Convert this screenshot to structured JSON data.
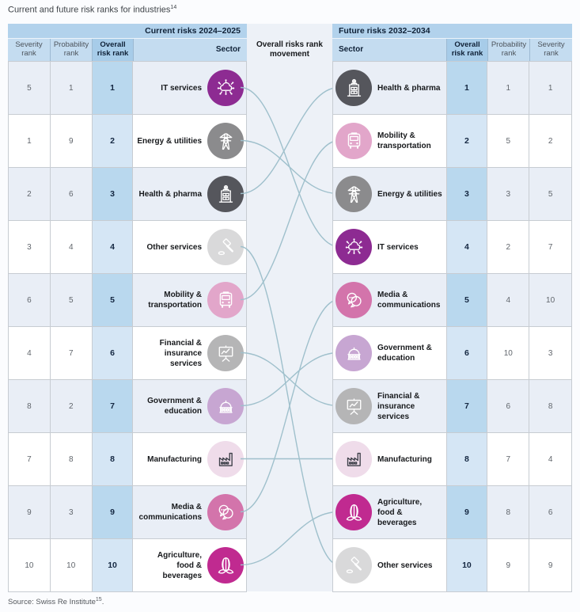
{
  "title": {
    "text": "Current and future risk ranks for industries",
    "superscript": "14"
  },
  "source": {
    "text": "Source: Swiss Re Institute",
    "superscript": "15",
    "suffix": "."
  },
  "colors": {
    "header_band": "#b2d2ec",
    "column_header": "#c4dcf0",
    "overall_header": "#a7cce9",
    "overall_cell_striped": "#b9d8ee",
    "overall_cell_white": "#d5e6f5",
    "row_striped": "#e9eef6",
    "row_white": "#ffffff",
    "movement_line": "#9fc0cc"
  },
  "current_table": {
    "header": "Current risks 2024–2025",
    "columns": {
      "severity": "Severity rank",
      "probability": "Probability rank",
      "overall": "Overall risk rank",
      "sector": "Sector"
    },
    "rows": [
      {
        "severity": "5",
        "probability": "1",
        "overall": "1",
        "sector": "IT services",
        "icon": "cloud-network-icon",
        "icon_bg": "#8d2b92",
        "icon_fg": "#ffffff"
      },
      {
        "severity": "1",
        "probability": "9",
        "overall": "2",
        "sector": "Energy & utilities",
        "icon": "transmission-tower-icon",
        "icon_bg": "#8b8b8d",
        "icon_fg": "#ffffff"
      },
      {
        "severity": "2",
        "probability": "6",
        "overall": "3",
        "sector": "Health & pharma",
        "icon": "hospital-icon",
        "icon_bg": "#55565c",
        "icon_fg": "#ffffff"
      },
      {
        "severity": "3",
        "probability": "4",
        "overall": "4",
        "sector": "Other services",
        "icon": "gavel-icon",
        "icon_bg": "#d9d9da",
        "icon_fg": "#ffffff"
      },
      {
        "severity": "6",
        "probability": "5",
        "overall": "5",
        "sector": "Mobility &\ntransportation",
        "icon": "bus-icon",
        "icon_bg": "#e2a6ca",
        "icon_fg": "#ffffff"
      },
      {
        "severity": "4",
        "probability": "7",
        "overall": "6",
        "sector": "Financial &\ninsurance\nservices",
        "icon": "presentation-chart-icon",
        "icon_bg": "#b5b5b6",
        "icon_fg": "#ffffff"
      },
      {
        "severity": "8",
        "probability": "2",
        "overall": "7",
        "sector": "Government &\neducation",
        "icon": "capitol-icon",
        "icon_bg": "#c7a6d2",
        "icon_fg": "#ffffff"
      },
      {
        "severity": "7",
        "probability": "8",
        "overall": "8",
        "sector": "Manufacturing",
        "icon": "factory-icon",
        "icon_bg": "#efdcea",
        "icon_fg": "#3c3f48"
      },
      {
        "severity": "9",
        "probability": "3",
        "overall": "9",
        "sector": "Media &\ncommunications",
        "icon": "chat-bubbles-icon",
        "icon_bg": "#d374ab",
        "icon_fg": "#ffffff"
      },
      {
        "severity": "10",
        "probability": "10",
        "overall": "10",
        "sector": "Agriculture,\nfood & beverages",
        "icon": "corn-icon",
        "icon_bg": "#c02a90",
        "icon_fg": "#ffffff"
      }
    ]
  },
  "movement": {
    "label": "Overall risks rank\nmovement",
    "line_color": "#9fc0cc",
    "connections": [
      {
        "sector": "IT services",
        "current_rank": 1,
        "future_rank": 4
      },
      {
        "sector": "Energy & utilities",
        "current_rank": 2,
        "future_rank": 3
      },
      {
        "sector": "Health & pharma",
        "current_rank": 3,
        "future_rank": 1
      },
      {
        "sector": "Other services",
        "current_rank": 4,
        "future_rank": 10
      },
      {
        "sector": "Mobility & transportation",
        "current_rank": 5,
        "future_rank": 2
      },
      {
        "sector": "Financial & insurance services",
        "current_rank": 6,
        "future_rank": 7
      },
      {
        "sector": "Government & education",
        "current_rank": 7,
        "future_rank": 6
      },
      {
        "sector": "Manufacturing",
        "current_rank": 8,
        "future_rank": 8
      },
      {
        "sector": "Media & communications",
        "current_rank": 9,
        "future_rank": 5
      },
      {
        "sector": "Agriculture, food & beverages",
        "current_rank": 10,
        "future_rank": 9
      }
    ]
  },
  "future_table": {
    "header": "Future risks 2032–2034",
    "columns": {
      "sector": "Sector",
      "overall": "Overall risk rank",
      "probability": "Probability rank",
      "severity": "Severity rank"
    },
    "rows": [
      {
        "sector": "Health & pharma",
        "overall": "1",
        "probability": "1",
        "severity": "1",
        "icon": "hospital-icon",
        "icon_bg": "#55565c",
        "icon_fg": "#ffffff"
      },
      {
        "sector": "Mobility &\ntransportation",
        "overall": "2",
        "probability": "5",
        "severity": "2",
        "icon": "bus-icon",
        "icon_bg": "#e2a6ca",
        "icon_fg": "#ffffff"
      },
      {
        "sector": "Energy & utilities",
        "overall": "3",
        "probability": "3",
        "severity": "5",
        "icon": "transmission-tower-icon",
        "icon_bg": "#8b8b8d",
        "icon_fg": "#ffffff"
      },
      {
        "sector": "IT services",
        "overall": "4",
        "probability": "2",
        "severity": "7",
        "icon": "cloud-network-icon",
        "icon_bg": "#8d2b92",
        "icon_fg": "#ffffff"
      },
      {
        "sector": "Media &\ncommunications",
        "overall": "5",
        "probability": "4",
        "severity": "10",
        "icon": "chat-bubbles-icon",
        "icon_bg": "#d374ab",
        "icon_fg": "#ffffff"
      },
      {
        "sector": "Government &\neducation",
        "overall": "6",
        "probability": "10",
        "severity": "3",
        "icon": "capitol-icon",
        "icon_bg": "#c7a6d2",
        "icon_fg": "#ffffff"
      },
      {
        "sector": "Financial &\ninsurance\nservices",
        "overall": "7",
        "probability": "6",
        "severity": "8",
        "icon": "presentation-chart-icon",
        "icon_bg": "#b5b5b6",
        "icon_fg": "#ffffff"
      },
      {
        "sector": "Manufacturing",
        "overall": "8",
        "probability": "7",
        "severity": "4",
        "icon": "factory-icon",
        "icon_bg": "#efdcea",
        "icon_fg": "#3c3f48"
      },
      {
        "sector": "Agriculture,\nfood & beverages",
        "overall": "9",
        "probability": "8",
        "severity": "6",
        "icon": "corn-icon",
        "icon_bg": "#c02a90",
        "icon_fg": "#ffffff"
      },
      {
        "sector": "Other services",
        "overall": "10",
        "probability": "9",
        "severity": "9",
        "icon": "gavel-icon",
        "icon_bg": "#d9d9da",
        "icon_fg": "#ffffff"
      }
    ]
  },
  "chart_data": {
    "type": "table",
    "title": "Current and future risk ranks for industries",
    "tables": [
      {
        "name": "Current risks 2024–2025",
        "columns": [
          "Severity rank",
          "Probability rank",
          "Overall risk rank",
          "Sector"
        ],
        "rows": [
          [
            5,
            1,
            1,
            "IT services"
          ],
          [
            1,
            9,
            2,
            "Energy & utilities"
          ],
          [
            2,
            6,
            3,
            "Health & pharma"
          ],
          [
            3,
            4,
            4,
            "Other services"
          ],
          [
            6,
            5,
            5,
            "Mobility & transportation"
          ],
          [
            4,
            7,
            6,
            "Financial & insurance services"
          ],
          [
            8,
            2,
            7,
            "Government & education"
          ],
          [
            7,
            8,
            8,
            "Manufacturing"
          ],
          [
            9,
            3,
            9,
            "Media & communications"
          ],
          [
            10,
            10,
            10,
            "Agriculture, food & beverages"
          ]
        ]
      },
      {
        "name": "Future risks 2032–2034",
        "columns": [
          "Sector",
          "Overall risk rank",
          "Probability rank",
          "Severity rank"
        ],
        "rows": [
          [
            "Health & pharma",
            1,
            1,
            1
          ],
          [
            "Mobility & transportation",
            2,
            5,
            2
          ],
          [
            "Energy & utilities",
            3,
            3,
            5
          ],
          [
            "IT services",
            4,
            2,
            7
          ],
          [
            "Media & communications",
            5,
            4,
            10
          ],
          [
            "Government & education",
            6,
            10,
            3
          ],
          [
            "Financial & insurance services",
            7,
            6,
            8
          ],
          [
            "Manufacturing",
            8,
            7,
            4
          ],
          [
            "Agriculture, food & beverages",
            9,
            8,
            6
          ],
          [
            "Other services",
            10,
            9,
            9
          ]
        ]
      }
    ],
    "rank_movement": [
      {
        "sector": "IT services",
        "current_rank": 1,
        "future_rank": 4
      },
      {
        "sector": "Energy & utilities",
        "current_rank": 2,
        "future_rank": 3
      },
      {
        "sector": "Health & pharma",
        "current_rank": 3,
        "future_rank": 1
      },
      {
        "sector": "Other services",
        "current_rank": 4,
        "future_rank": 10
      },
      {
        "sector": "Mobility & transportation",
        "current_rank": 5,
        "future_rank": 2
      },
      {
        "sector": "Financial & insurance services",
        "current_rank": 6,
        "future_rank": 7
      },
      {
        "sector": "Government & education",
        "current_rank": 7,
        "future_rank": 6
      },
      {
        "sector": "Manufacturing",
        "current_rank": 8,
        "future_rank": 8
      },
      {
        "sector": "Media & communications",
        "current_rank": 9,
        "future_rank": 5
      },
      {
        "sector": "Agriculture, food & beverages",
        "current_rank": 10,
        "future_rank": 9
      }
    ]
  }
}
